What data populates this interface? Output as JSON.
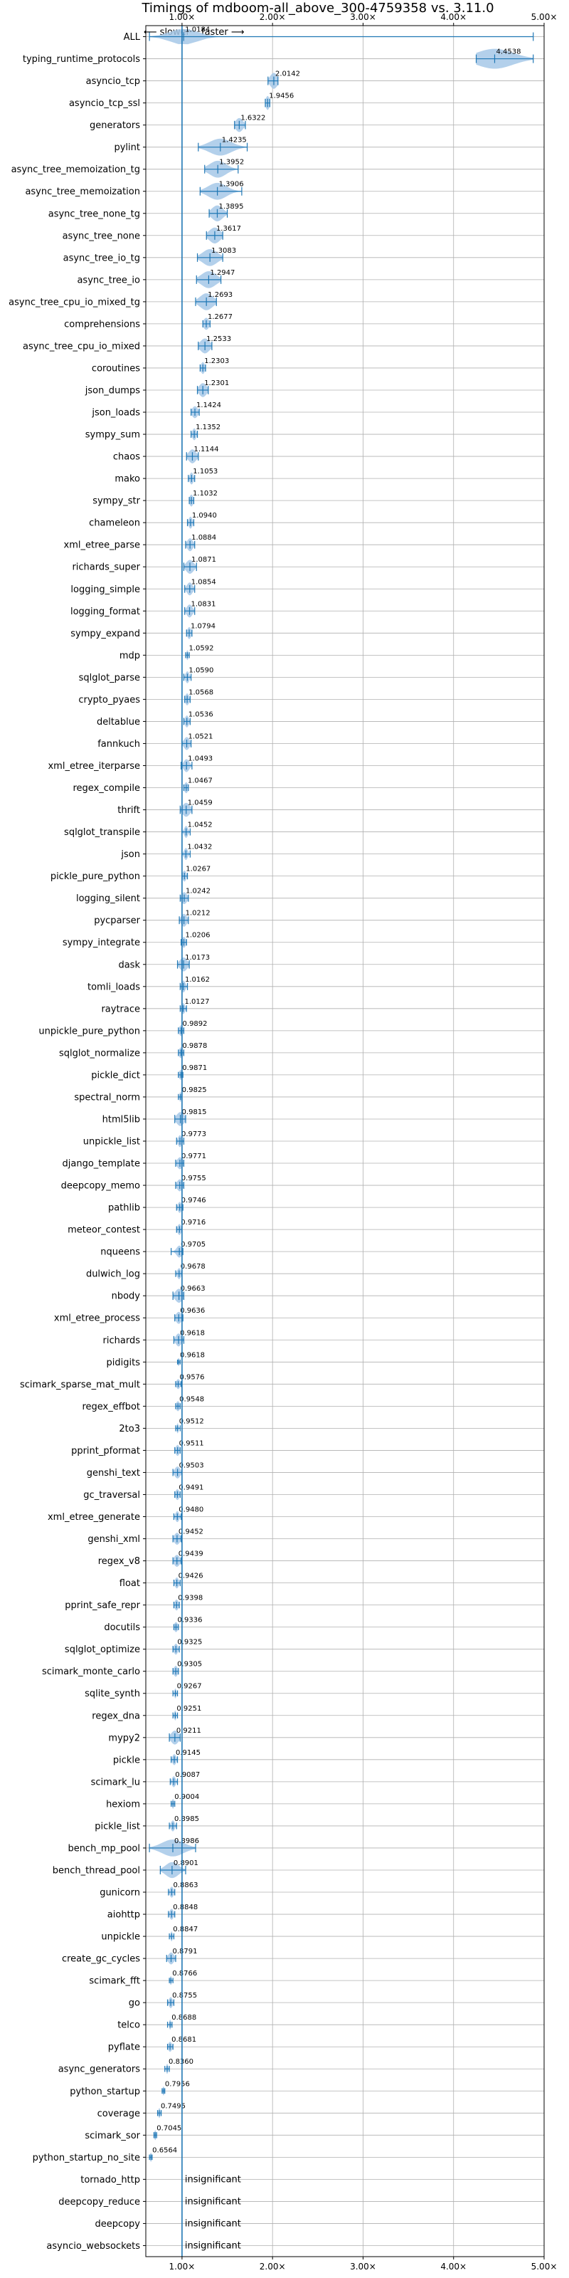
{
  "chart_data": {
    "type": "violin",
    "title": "Timings of mdboom-all_above_300-4759358 vs. 3.11.0",
    "direction_labels": {
      "slower": "⟵ slower",
      "faster": "faster ⟶"
    },
    "xlim": [
      0.6,
      5.0
    ],
    "x_ticks": [
      1,
      2,
      3,
      4,
      5
    ],
    "x_tick_labels": [
      "1.00×",
      "2.00×",
      "3.00×",
      "4.00×",
      "5.00×"
    ],
    "reference_line": 1.0,
    "grid": true,
    "colors": {
      "violin": "#a6c8e8",
      "line": "#1f77b4",
      "insignificant": "#000000"
    },
    "insignificant_label": "insignificant",
    "benchmarks": [
      {
        "name": "ALL",
        "mean": 1.0184,
        "label": "1.0184",
        "lo": 0.64,
        "hi": 4.88,
        "spread": 0.15,
        "width": 0.8
      },
      {
        "name": "typing_runtime_protocols",
        "mean": 4.4538,
        "label": "4.4538",
        "lo": 4.25,
        "hi": 4.88,
        "spread": 0.2,
        "width": 1.0
      },
      {
        "name": "asyncio_tcp",
        "mean": 2.0142,
        "label": "2.0142",
        "lo": 1.95,
        "hi": 2.06,
        "spread": 0.04,
        "width": 0.8
      },
      {
        "name": "asyncio_tcp_ssl",
        "mean": 1.9456,
        "label": "1.9456",
        "lo": 1.92,
        "hi": 1.97,
        "spread": 0.02,
        "width": 0.7
      },
      {
        "name": "generators",
        "mean": 1.6322,
        "label": "1.6322",
        "lo": 1.58,
        "hi": 1.7,
        "spread": 0.04,
        "width": 0.7
      },
      {
        "name": "pylint",
        "mean": 1.4235,
        "label": "1.4235",
        "lo": 1.18,
        "hi": 1.72,
        "spread": 0.12,
        "width": 0.85
      },
      {
        "name": "async_tree_memoization_tg",
        "mean": 1.3952,
        "label": "1.3952",
        "lo": 1.25,
        "hi": 1.62,
        "spread": 0.09,
        "width": 0.85
      },
      {
        "name": "async_tree_memoization",
        "mean": 1.3906,
        "label": "1.3906",
        "lo": 1.2,
        "hi": 1.66,
        "spread": 0.1,
        "width": 0.85
      },
      {
        "name": "async_tree_none_tg",
        "mean": 1.3895,
        "label": "1.3895",
        "lo": 1.3,
        "hi": 1.5,
        "spread": 0.06,
        "width": 0.8
      },
      {
        "name": "async_tree_none",
        "mean": 1.3617,
        "label": "1.3617",
        "lo": 1.27,
        "hi": 1.45,
        "spread": 0.06,
        "width": 0.8
      },
      {
        "name": "async_tree_io_tg",
        "mean": 1.3083,
        "label": "1.3083",
        "lo": 1.17,
        "hi": 1.45,
        "spread": 0.08,
        "width": 0.85
      },
      {
        "name": "async_tree_io",
        "mean": 1.2947,
        "label": "1.2947",
        "lo": 1.16,
        "hi": 1.43,
        "spread": 0.08,
        "width": 0.85
      },
      {
        "name": "async_tree_cpu_io_mixed_tg",
        "mean": 1.2693,
        "label": "1.2693",
        "lo": 1.15,
        "hi": 1.38,
        "spread": 0.07,
        "width": 0.85
      },
      {
        "name": "comprehensions",
        "mean": 1.2677,
        "label": "1.2677",
        "lo": 1.23,
        "hi": 1.31,
        "spread": 0.03,
        "width": 0.6
      },
      {
        "name": "async_tree_cpu_io_mixed",
        "mean": 1.2533,
        "label": "1.2533",
        "lo": 1.18,
        "hi": 1.33,
        "spread": 0.05,
        "width": 0.75
      },
      {
        "name": "coroutines",
        "mean": 1.2303,
        "label": "1.2303",
        "lo": 1.2,
        "hi": 1.26,
        "spread": 0.02,
        "width": 0.6
      },
      {
        "name": "json_dumps",
        "mean": 1.2301,
        "label": "1.2301",
        "lo": 1.17,
        "hi": 1.29,
        "spread": 0.04,
        "width": 0.7
      },
      {
        "name": "json_loads",
        "mean": 1.1424,
        "label": "1.1424",
        "lo": 1.1,
        "hi": 1.19,
        "spread": 0.03,
        "width": 0.6
      },
      {
        "name": "sympy_sum",
        "mean": 1.1352,
        "label": "1.1352",
        "lo": 1.1,
        "hi": 1.17,
        "spread": 0.02,
        "width": 0.6
      },
      {
        "name": "chaos",
        "mean": 1.1144,
        "label": "1.1144",
        "lo": 1.05,
        "hi": 1.18,
        "spread": 0.04,
        "width": 0.7
      },
      {
        "name": "mako",
        "mean": 1.1053,
        "label": "1.1053",
        "lo": 1.07,
        "hi": 1.14,
        "spread": 0.02,
        "width": 0.6
      },
      {
        "name": "sympy_str",
        "mean": 1.1032,
        "label": "1.1032",
        "lo": 1.08,
        "hi": 1.13,
        "spread": 0.02,
        "width": 0.6
      },
      {
        "name": "chameleon",
        "mean": 1.094,
        "label": "1.0940",
        "lo": 1.06,
        "hi": 1.13,
        "spread": 0.02,
        "width": 0.6
      },
      {
        "name": "xml_etree_parse",
        "mean": 1.0884,
        "label": "1.0884",
        "lo": 1.04,
        "hi": 1.14,
        "spread": 0.03,
        "width": 0.65
      },
      {
        "name": "richards_super",
        "mean": 1.0871,
        "label": "1.0871",
        "lo": 1.02,
        "hi": 1.16,
        "spread": 0.04,
        "width": 0.7
      },
      {
        "name": "logging_simple",
        "mean": 1.0854,
        "label": "1.0854",
        "lo": 1.03,
        "hi": 1.14,
        "spread": 0.03,
        "width": 0.65
      },
      {
        "name": "logging_format",
        "mean": 1.0831,
        "label": "1.0831",
        "lo": 1.03,
        "hi": 1.14,
        "spread": 0.03,
        "width": 0.65
      },
      {
        "name": "sympy_expand",
        "mean": 1.0794,
        "label": "1.0794",
        "lo": 1.05,
        "hi": 1.11,
        "spread": 0.02,
        "width": 0.6
      },
      {
        "name": "mdp",
        "mean": 1.0592,
        "label": "1.0592",
        "lo": 1.04,
        "hi": 1.08,
        "spread": 0.01,
        "width": 0.5
      },
      {
        "name": "sqlglot_parse",
        "mean": 1.059,
        "label": "1.0590",
        "lo": 1.02,
        "hi": 1.1,
        "spread": 0.02,
        "width": 0.6
      },
      {
        "name": "crypto_pyaes",
        "mean": 1.0568,
        "label": "1.0568",
        "lo": 1.03,
        "hi": 1.09,
        "spread": 0.02,
        "width": 0.6
      },
      {
        "name": "deltablue",
        "mean": 1.0536,
        "label": "1.0536",
        "lo": 1.02,
        "hi": 1.09,
        "spread": 0.02,
        "width": 0.6
      },
      {
        "name": "fannkuch",
        "mean": 1.0521,
        "label": "1.0521",
        "lo": 1.0,
        "hi": 1.1,
        "spread": 0.03,
        "width": 0.65
      },
      {
        "name": "xml_etree_iterparse",
        "mean": 1.0493,
        "label": "1.0493",
        "lo": 0.99,
        "hi": 1.11,
        "spread": 0.03,
        "width": 0.65
      },
      {
        "name": "regex_compile",
        "mean": 1.0467,
        "label": "1.0467",
        "lo": 1.02,
        "hi": 1.07,
        "spread": 0.02,
        "width": 0.55
      },
      {
        "name": "thrift",
        "mean": 1.0459,
        "label": "1.0459",
        "lo": 0.98,
        "hi": 1.11,
        "spread": 0.04,
        "width": 0.7
      },
      {
        "name": "sqlglot_transpile",
        "mean": 1.0452,
        "label": "1.0452",
        "lo": 1.0,
        "hi": 1.09,
        "spread": 0.02,
        "width": 0.6
      },
      {
        "name": "json",
        "mean": 1.0432,
        "label": "1.0432",
        "lo": 1.0,
        "hi": 1.09,
        "spread": 0.02,
        "width": 0.6
      },
      {
        "name": "pickle_pure_python",
        "mean": 1.0267,
        "label": "1.0267",
        "lo": 1.0,
        "hi": 1.06,
        "spread": 0.02,
        "width": 0.55
      },
      {
        "name": "logging_silent",
        "mean": 1.0242,
        "label": "1.0242",
        "lo": 0.98,
        "hi": 1.07,
        "spread": 0.03,
        "width": 0.6
      },
      {
        "name": "pycparser",
        "mean": 1.0212,
        "label": "1.0212",
        "lo": 0.97,
        "hi": 1.07,
        "spread": 0.03,
        "width": 0.65
      },
      {
        "name": "sympy_integrate",
        "mean": 1.0206,
        "label": "1.0206",
        "lo": 0.99,
        "hi": 1.05,
        "spread": 0.02,
        "width": 0.55
      },
      {
        "name": "dask",
        "mean": 1.0173,
        "label": "1.0173",
        "lo": 0.95,
        "hi": 1.08,
        "spread": 0.04,
        "width": 0.7
      },
      {
        "name": "tomli_loads",
        "mean": 1.0162,
        "label": "1.0162",
        "lo": 0.98,
        "hi": 1.06,
        "spread": 0.02,
        "width": 0.6
      },
      {
        "name": "raytrace",
        "mean": 1.0127,
        "label": "1.0127",
        "lo": 0.98,
        "hi": 1.05,
        "spread": 0.02,
        "width": 0.55
      },
      {
        "name": "unpickle_pure_python",
        "mean": 0.9892,
        "label": "0.9892",
        "lo": 0.96,
        "hi": 1.02,
        "spread": 0.02,
        "width": 0.55
      },
      {
        "name": "sqlglot_normalize",
        "mean": 0.9878,
        "label": "0.9878",
        "lo": 0.96,
        "hi": 1.02,
        "spread": 0.02,
        "width": 0.55
      },
      {
        "name": "pickle_dict",
        "mean": 0.9871,
        "label": "0.9871",
        "lo": 0.96,
        "hi": 1.01,
        "spread": 0.02,
        "width": 0.5
      },
      {
        "name": "spectral_norm",
        "mean": 0.9825,
        "label": "0.9825",
        "lo": 0.96,
        "hi": 1.0,
        "spread": 0.01,
        "width": 0.5
      },
      {
        "name": "html5lib",
        "mean": 0.9815,
        "label": "0.9815",
        "lo": 0.92,
        "hi": 1.04,
        "spread": 0.04,
        "width": 0.7
      },
      {
        "name": "unpickle_list",
        "mean": 0.9773,
        "label": "0.9773",
        "lo": 0.94,
        "hi": 1.02,
        "spread": 0.02,
        "width": 0.6
      },
      {
        "name": "django_template",
        "mean": 0.9771,
        "label": "0.9771",
        "lo": 0.93,
        "hi": 1.02,
        "spread": 0.03,
        "width": 0.6
      },
      {
        "name": "deepcopy_memo",
        "mean": 0.9755,
        "label": "0.9755",
        "lo": 0.93,
        "hi": 1.02,
        "spread": 0.03,
        "width": 0.6
      },
      {
        "name": "pathlib",
        "mean": 0.9746,
        "label": "0.9746",
        "lo": 0.94,
        "hi": 1.01,
        "spread": 0.02,
        "width": 0.55
      },
      {
        "name": "meteor_contest",
        "mean": 0.9716,
        "label": "0.9716",
        "lo": 0.94,
        "hi": 1.0,
        "spread": 0.02,
        "width": 0.55
      },
      {
        "name": "nqueens",
        "mean": 0.9705,
        "label": "0.9705",
        "lo": 0.88,
        "hi": 1.01,
        "spread": 0.03,
        "width": 0.6
      },
      {
        "name": "dulwich_log",
        "mean": 0.9678,
        "label": "0.9678",
        "lo": 0.93,
        "hi": 1.0,
        "spread": 0.02,
        "width": 0.55
      },
      {
        "name": "nbody",
        "mean": 0.9663,
        "label": "0.9663",
        "lo": 0.9,
        "hi": 1.02,
        "spread": 0.04,
        "width": 0.7
      },
      {
        "name": "xml_etree_process",
        "mean": 0.9636,
        "label": "0.9636",
        "lo": 0.92,
        "hi": 1.01,
        "spread": 0.03,
        "width": 0.6
      },
      {
        "name": "richards",
        "mean": 0.9618,
        "label": "0.9618",
        "lo": 0.91,
        "hi": 1.02,
        "spread": 0.03,
        "width": 0.65
      },
      {
        "name": "pidigits",
        "mean": 0.9618,
        "label": "0.9618",
        "lo": 0.95,
        "hi": 0.98,
        "spread": 0.01,
        "width": 0.4
      },
      {
        "name": "scimark_sparse_mat_mult",
        "mean": 0.9576,
        "label": "0.9576",
        "lo": 0.93,
        "hi": 0.99,
        "spread": 0.02,
        "width": 0.5
      },
      {
        "name": "regex_effbot",
        "mean": 0.9548,
        "label": "0.9548",
        "lo": 0.93,
        "hi": 0.98,
        "spread": 0.02,
        "width": 0.5
      },
      {
        "name": "2to3",
        "mean": 0.9512,
        "label": "0.9512",
        "lo": 0.93,
        "hi": 0.98,
        "spread": 0.01,
        "width": 0.5
      },
      {
        "name": "pprint_pformat",
        "mean": 0.9511,
        "label": "0.9511",
        "lo": 0.92,
        "hi": 0.98,
        "spread": 0.02,
        "width": 0.55
      },
      {
        "name": "genshi_text",
        "mean": 0.9503,
        "label": "0.9503",
        "lo": 0.9,
        "hi": 1.0,
        "spread": 0.03,
        "width": 0.6
      },
      {
        "name": "gc_traversal",
        "mean": 0.9491,
        "label": "0.9491",
        "lo": 0.92,
        "hi": 0.98,
        "spread": 0.02,
        "width": 0.55
      },
      {
        "name": "xml_etree_generate",
        "mean": 0.948,
        "label": "0.9480",
        "lo": 0.91,
        "hi": 0.99,
        "spread": 0.02,
        "width": 0.55
      },
      {
        "name": "genshi_xml",
        "mean": 0.9452,
        "label": "0.9452",
        "lo": 0.9,
        "hi": 0.99,
        "spread": 0.03,
        "width": 0.6
      },
      {
        "name": "regex_v8",
        "mean": 0.9439,
        "label": "0.9439",
        "lo": 0.9,
        "hi": 0.99,
        "spread": 0.03,
        "width": 0.6
      },
      {
        "name": "float",
        "mean": 0.9426,
        "label": "0.9426",
        "lo": 0.91,
        "hi": 0.98,
        "spread": 0.02,
        "width": 0.55
      },
      {
        "name": "pprint_safe_repr",
        "mean": 0.9398,
        "label": "0.9398",
        "lo": 0.91,
        "hi": 0.97,
        "spread": 0.02,
        "width": 0.55
      },
      {
        "name": "docutils",
        "mean": 0.9336,
        "label": "0.9336",
        "lo": 0.91,
        "hi": 0.96,
        "spread": 0.02,
        "width": 0.5
      },
      {
        "name": "sqlglot_optimize",
        "mean": 0.9325,
        "label": "0.9325",
        "lo": 0.9,
        "hi": 0.97,
        "spread": 0.02,
        "width": 0.55
      },
      {
        "name": "scimark_monte_carlo",
        "mean": 0.9305,
        "label": "0.9305",
        "lo": 0.9,
        "hi": 0.96,
        "spread": 0.02,
        "width": 0.55
      },
      {
        "name": "sqlite_synth",
        "mean": 0.9267,
        "label": "0.9267",
        "lo": 0.9,
        "hi": 0.95,
        "spread": 0.01,
        "width": 0.5
      },
      {
        "name": "regex_dna",
        "mean": 0.9251,
        "label": "0.9251",
        "lo": 0.9,
        "hi": 0.95,
        "spread": 0.01,
        "width": 0.5
      },
      {
        "name": "mypy2",
        "mean": 0.9211,
        "label": "0.9211",
        "lo": 0.86,
        "hi": 0.98,
        "spread": 0.04,
        "width": 0.7
      },
      {
        "name": "pickle",
        "mean": 0.9145,
        "label": "0.9145",
        "lo": 0.88,
        "hi": 0.95,
        "spread": 0.02,
        "width": 0.55
      },
      {
        "name": "scimark_lu",
        "mean": 0.9087,
        "label": "0.9087",
        "lo": 0.87,
        "hi": 0.95,
        "spread": 0.02,
        "width": 0.55
      },
      {
        "name": "hexiom",
        "mean": 0.9004,
        "label": "0.9004",
        "lo": 0.88,
        "hi": 0.92,
        "spread": 0.01,
        "width": 0.5
      },
      {
        "name": "pickle_list",
        "mean": 0.8985,
        "label": "0.8985",
        "lo": 0.86,
        "hi": 0.94,
        "spread": 0.02,
        "width": 0.55
      },
      {
        "name": "bench_mp_pool",
        "mean": 0.8986,
        "label": "0.8986",
        "lo": 0.64,
        "hi": 1.15,
        "spread": 0.12,
        "width": 0.85
      },
      {
        "name": "bench_thread_pool",
        "mean": 0.8901,
        "label": "0.8901",
        "lo": 0.76,
        "hi": 1.04,
        "spread": 0.07,
        "width": 0.8
      },
      {
        "name": "gunicorn",
        "mean": 0.8863,
        "label": "0.8863",
        "lo": 0.85,
        "hi": 0.92,
        "spread": 0.02,
        "width": 0.55
      },
      {
        "name": "aiohttp",
        "mean": 0.8848,
        "label": "0.8848",
        "lo": 0.85,
        "hi": 0.92,
        "spread": 0.02,
        "width": 0.55
      },
      {
        "name": "unpickle",
        "mean": 0.8847,
        "label": "0.8847",
        "lo": 0.86,
        "hi": 0.91,
        "spread": 0.01,
        "width": 0.5
      },
      {
        "name": "create_gc_cycles",
        "mean": 0.8791,
        "label": "0.8791",
        "lo": 0.83,
        "hi": 0.93,
        "spread": 0.03,
        "width": 0.6
      },
      {
        "name": "scimark_fft",
        "mean": 0.8766,
        "label": "0.8766",
        "lo": 0.86,
        "hi": 0.9,
        "spread": 0.01,
        "width": 0.45
      },
      {
        "name": "go",
        "mean": 0.8755,
        "label": "0.8755",
        "lo": 0.84,
        "hi": 0.91,
        "spread": 0.02,
        "width": 0.55
      },
      {
        "name": "telco",
        "mean": 0.8688,
        "label": "0.8688",
        "lo": 0.84,
        "hi": 0.89,
        "spread": 0.01,
        "width": 0.5
      },
      {
        "name": "pyflate",
        "mean": 0.8681,
        "label": "0.8681",
        "lo": 0.84,
        "hi": 0.9,
        "spread": 0.02,
        "width": 0.5
      },
      {
        "name": "async_generators",
        "mean": 0.836,
        "label": "0.8360",
        "lo": 0.81,
        "hi": 0.86,
        "spread": 0.01,
        "width": 0.5
      },
      {
        "name": "python_startup",
        "mean": 0.7956,
        "label": "0.7956",
        "lo": 0.78,
        "hi": 0.81,
        "spread": 0.01,
        "width": 0.45
      },
      {
        "name": "coverage",
        "mean": 0.7495,
        "label": "0.7495",
        "lo": 0.73,
        "hi": 0.77,
        "spread": 0.01,
        "width": 0.5
      },
      {
        "name": "scimark_sor",
        "mean": 0.7045,
        "label": "0.7045",
        "lo": 0.69,
        "hi": 0.72,
        "spread": 0.01,
        "width": 0.5
      },
      {
        "name": "python_startup_no_site",
        "mean": 0.6564,
        "label": "0.6564",
        "lo": 0.64,
        "hi": 0.67,
        "spread": 0.01,
        "width": 0.45
      },
      {
        "name": "tornado_http",
        "insignificant": true
      },
      {
        "name": "deepcopy_reduce",
        "insignificant": true
      },
      {
        "name": "deepcopy",
        "insignificant": true
      },
      {
        "name": "asyncio_websockets",
        "insignificant": true
      }
    ]
  }
}
